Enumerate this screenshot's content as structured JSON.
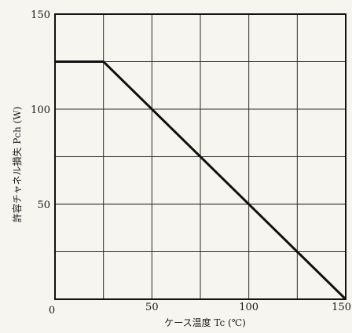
{
  "chart_data": {
    "type": "line",
    "xlabel": "ケース温度 Tc (℃)",
    "ylabel": "許容チャネル損失 Pch (W)",
    "xlim": [
      0,
      150
    ],
    "ylim": [
      0,
      150
    ],
    "xticks": [
      50,
      100,
      150
    ],
    "yticks": [
      50,
      100,
      150
    ],
    "origin_label": "0",
    "grid": true,
    "grid_step": 25,
    "legend": "none",
    "series": [
      {
        "x": [
          0,
          25,
          150
        ],
        "y": [
          125,
          125,
          0
        ]
      }
    ]
  }
}
